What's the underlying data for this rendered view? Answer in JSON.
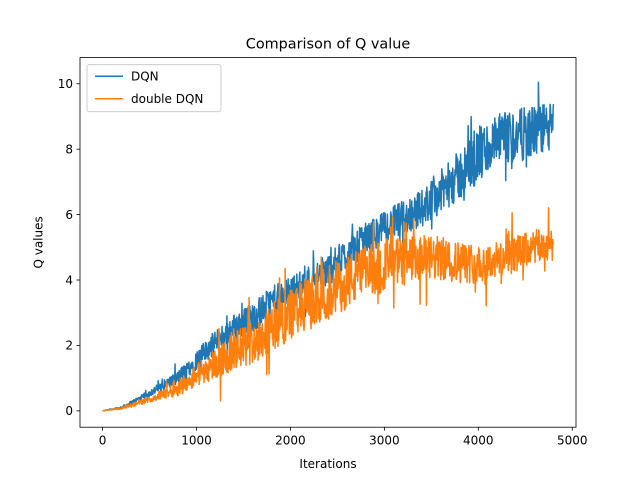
{
  "chart_data": {
    "type": "line",
    "title": "Comparison of Q value",
    "xlabel": "Iterations",
    "ylabel": "Q values",
    "xlim": [
      -240,
      5040
    ],
    "ylim": [
      -0.5,
      10.8
    ],
    "xticks": [
      0,
      1000,
      2000,
      3000,
      4000,
      5000
    ],
    "yticks": [
      0,
      2,
      4,
      6,
      8,
      10
    ],
    "legend_position": "upper-left",
    "grid": false,
    "x_end": 4800,
    "series": [
      {
        "name": "DQN",
        "color": "#1f77b4",
        "points": [
          [
            0,
            0.0
          ],
          [
            200,
            0.1
          ],
          [
            400,
            0.38
          ],
          [
            600,
            0.7
          ],
          [
            800,
            1.0
          ],
          [
            1000,
            1.55
          ],
          [
            1200,
            2.1
          ],
          [
            1400,
            2.55
          ],
          [
            1600,
            2.85
          ],
          [
            1800,
            3.35
          ],
          [
            2000,
            3.65
          ],
          [
            2200,
            4.0
          ],
          [
            2400,
            4.3
          ],
          [
            2600,
            4.8
          ],
          [
            2800,
            5.25
          ],
          [
            3000,
            5.6
          ],
          [
            3200,
            5.9
          ],
          [
            3400,
            6.2
          ],
          [
            3600,
            6.7
          ],
          [
            3800,
            7.2
          ],
          [
            4000,
            7.8
          ],
          [
            4200,
            8.2
          ],
          [
            4400,
            8.4
          ],
          [
            4600,
            8.55
          ],
          [
            4800,
            8.7
          ]
        ],
        "noise": [
          [
            0,
            0.0
          ],
          [
            500,
            0.1
          ],
          [
            1000,
            0.3
          ],
          [
            1500,
            0.45
          ],
          [
            2000,
            0.45
          ],
          [
            2500,
            0.5
          ],
          [
            3000,
            0.5
          ],
          [
            3500,
            0.6
          ],
          [
            4000,
            0.9
          ],
          [
            4500,
            0.8
          ],
          [
            4800,
            0.75
          ]
        ],
        "observed_max": 10.3,
        "observed_min": 0.0
      },
      {
        "name": "double DQN",
        "color": "#ff7f0e",
        "points": [
          [
            0,
            0.0
          ],
          [
            200,
            0.08
          ],
          [
            400,
            0.25
          ],
          [
            600,
            0.45
          ],
          [
            800,
            0.7
          ],
          [
            1000,
            1.1
          ],
          [
            1200,
            1.45
          ],
          [
            1400,
            1.8
          ],
          [
            1600,
            2.1
          ],
          [
            1800,
            2.55
          ],
          [
            2000,
            2.95
          ],
          [
            2200,
            3.3
          ],
          [
            2400,
            3.6
          ],
          [
            2600,
            3.95
          ],
          [
            2800,
            4.25
          ],
          [
            3000,
            4.5
          ],
          [
            3200,
            4.55
          ],
          [
            3400,
            4.65
          ],
          [
            3600,
            4.65
          ],
          [
            3800,
            4.55
          ],
          [
            4000,
            4.5
          ],
          [
            4200,
            4.6
          ],
          [
            4400,
            4.8
          ],
          [
            4600,
            5.0
          ],
          [
            4800,
            5.1
          ]
        ],
        "noise": [
          [
            0,
            0.0
          ],
          [
            500,
            0.08
          ],
          [
            1000,
            0.35
          ],
          [
            1500,
            0.65
          ],
          [
            2000,
            0.8
          ],
          [
            2500,
            0.85
          ],
          [
            3000,
            0.8
          ],
          [
            3500,
            0.7
          ],
          [
            4000,
            0.6
          ],
          [
            4500,
            0.55
          ],
          [
            4800,
            0.5
          ]
        ],
        "observed_max": 6.5,
        "observed_min": 0.0
      }
    ]
  }
}
